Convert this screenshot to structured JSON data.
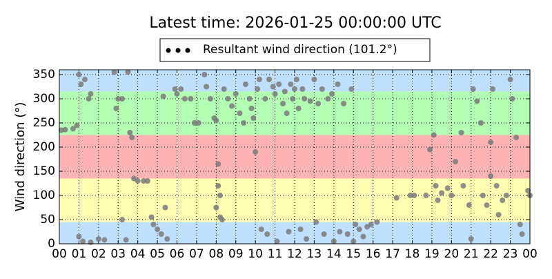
{
  "chart_data": {
    "type": "scatter",
    "title": "Latest time: 2026-01-25 00:00:00 UTC",
    "y_label": "Wind direction (°)",
    "xlim": [
      0,
      24
    ],
    "xticks": [
      {
        "value": 0,
        "label": "00"
      },
      {
        "value": 1,
        "label": "01"
      },
      {
        "value": 2,
        "label": "02"
      },
      {
        "value": 3,
        "label": "03"
      },
      {
        "value": 4,
        "label": "04"
      },
      {
        "value": 5,
        "label": "05"
      },
      {
        "value": 6,
        "label": "06"
      },
      {
        "value": 7,
        "label": "07"
      },
      {
        "value": 8,
        "label": "08"
      },
      {
        "value": 9,
        "label": "09"
      },
      {
        "value": 10,
        "label": "10"
      },
      {
        "value": 11,
        "label": "11"
      },
      {
        "value": 12,
        "label": "12"
      },
      {
        "value": 13,
        "label": "13"
      },
      {
        "value": 14,
        "label": "14"
      },
      {
        "value": 15,
        "label": "15"
      },
      {
        "value": 16,
        "label": "16"
      },
      {
        "value": 17,
        "label": "17"
      },
      {
        "value": 18,
        "label": "18"
      },
      {
        "value": 19,
        "label": "19"
      },
      {
        "value": 20,
        "label": "20"
      },
      {
        "value": 21,
        "label": "21"
      },
      {
        "value": 22,
        "label": "22"
      },
      {
        "value": 23,
        "label": "23"
      },
      {
        "value": 24,
        "label": "00"
      }
    ],
    "ylim": [
      0,
      360
    ],
    "yticks": [
      0,
      50,
      100,
      150,
      200,
      250,
      300,
      350
    ],
    "grid": true,
    "bands": [
      {
        "from": 0,
        "to": 45,
        "color": "#bfe0ff"
      },
      {
        "from": 45,
        "to": 135,
        "color": "#ffffb3"
      },
      {
        "from": 135,
        "to": 225,
        "color": "#ffb3b3"
      },
      {
        "from": 225,
        "to": 315,
        "color": "#b3ffb3"
      },
      {
        "from": 315,
        "to": 360,
        "color": "#bfe0ff"
      }
    ],
    "legend_position": "top",
    "legend_marker_color": "#000000",
    "series": [
      {
        "name": "Resultant wind direction (101.2°)",
        "color": "#7a7a7a",
        "x": [
          0.1,
          0.3,
          0.7,
          0.9,
          1.0,
          1.1,
          1.3,
          1.5,
          1.6,
          1.2,
          1.0,
          1.6,
          2.0,
          2.3,
          2.8,
          3.0,
          3.2,
          2.9,
          3.2,
          3.4,
          3.5,
          3.6,
          3.7,
          3.8,
          4.0,
          4.3,
          4.5,
          4.7,
          4.8,
          5.0,
          5.2,
          5.4,
          5.3,
          5.5,
          5.9,
          6.0,
          6.2,
          6.4,
          6.7,
          6.9,
          7.1,
          7.4,
          7.5,
          7.7,
          7.9,
          8.0,
          8.1,
          8.2,
          8.0,
          8.3,
          8.2,
          8.1,
          8.4,
          8.6,
          8.8,
          9.0,
          9.2,
          9.4,
          9.5,
          9.7,
          9.8,
          9.9,
          10.0,
          10.1,
          10.2,
          10.3,
          10.5,
          10.6,
          10.7,
          10.9,
          11.0,
          11.1,
          11.2,
          11.4,
          11.5,
          11.6,
          11.7,
          11.8,
          11.9,
          12.0,
          12.1,
          12.2,
          12.3,
          12.4,
          12.5,
          12.6,
          12.8,
          13.0,
          13.1,
          13.2,
          13.4,
          13.5,
          13.7,
          13.9,
          14.0,
          14.2,
          14.3,
          14.5,
          14.7,
          14.9,
          15.0,
          15.1,
          15.3,
          15.5,
          15.7,
          15.9,
          16.2,
          17.2,
          17.9,
          18.1,
          18.7,
          18.9,
          19.1,
          19.2,
          19.3,
          19.5,
          19.8,
          20.0,
          20.2,
          20.5,
          20.6,
          20.9,
          21.0,
          21.1,
          21.3,
          21.5,
          21.6,
          21.8,
          22.0,
          22.0,
          22.1,
          22.3,
          22.4,
          22.6,
          22.8,
          23.0,
          23.1,
          23.3,
          23.5,
          23.6,
          23.9,
          24.0
        ],
        "values": [
          235,
          236,
          238,
          245,
          350,
          330,
          340,
          300,
          310,
          5,
          15,
          3,
          10,
          8,
          355,
          300,
          300,
          280,
          50,
          8,
          355,
          230,
          220,
          135,
          130,
          130,
          130,
          55,
          40,
          30,
          20,
          75,
          305,
          10,
          320,
          310,
          320,
          300,
          300,
          250,
          250,
          350,
          325,
          300,
          260,
          255,
          120,
          100,
          75,
          50,
          55,
          165,
          320,
          300,
          285,
          310,
          270,
          250,
          330,
          300,
          280,
          260,
          190,
          320,
          340,
          30,
          300,
          20,
          340,
          325,
          310,
          5,
          330,
          290,
          315,
          270,
          25,
          330,
          300,
          320,
          340,
          280,
          30,
          320,
          300,
          10,
          295,
          340,
          45,
          290,
          320,
          20,
          300,
          310,
          5,
          330,
          25,
          290,
          20,
          320,
          5,
          40,
          30,
          15,
          35,
          40,
          45,
          95,
          100,
          100,
          100,
          195,
          225,
          120,
          90,
          105,
          115,
          100,
          170,
          230,
          120,
          80,
          10,
          320,
          295,
          250,
          100,
          80,
          140,
          210,
          320,
          120,
          60,
          90,
          100,
          340,
          300,
          220,
          40,
          20,
          110,
          100
        ]
      }
    ]
  }
}
